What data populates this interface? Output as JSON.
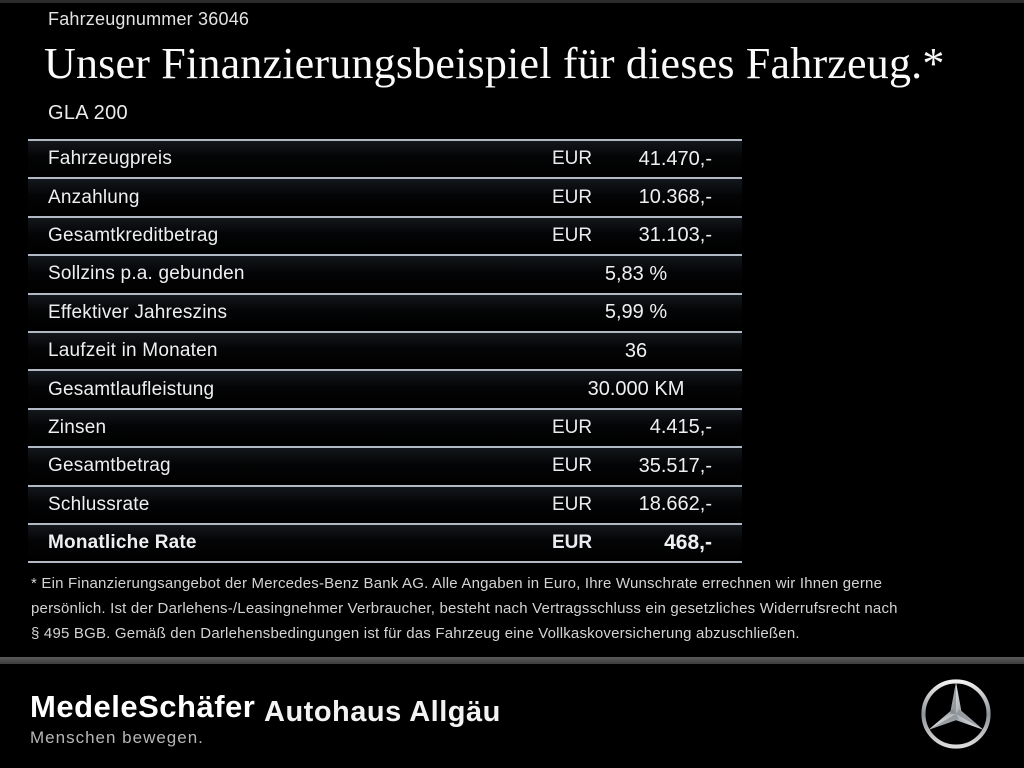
{
  "header": {
    "vehicle_number": "Fahrzeugnummer 36046",
    "title": "Unser Finanzierungsbeispiel für dieses Fahrzeug.*",
    "model": "GLA 200"
  },
  "table": {
    "rows": [
      {
        "label": "Fahrzeugpreis",
        "currency": "EUR",
        "value": "41.470,-",
        "centered": false,
        "bold": false
      },
      {
        "label": "Anzahlung",
        "currency": "EUR",
        "value": "10.368,-",
        "centered": false,
        "bold": false
      },
      {
        "label": "Gesamtkreditbetrag",
        "currency": "EUR",
        "value": "31.103,-",
        "centered": false,
        "bold": false
      },
      {
        "label": "Sollzins p.a. gebunden",
        "currency": "",
        "value": "5,83 %",
        "centered": true,
        "bold": false
      },
      {
        "label": "Effektiver Jahreszins",
        "currency": "",
        "value": "5,99 %",
        "centered": true,
        "bold": false
      },
      {
        "label": "Laufzeit in Monaten",
        "currency": "",
        "value": "36",
        "centered": true,
        "bold": false
      },
      {
        "label": "Gesamtlaufleistung",
        "currency": "",
        "value": "30.000 KM",
        "centered": true,
        "bold": false
      },
      {
        "label": "Zinsen",
        "currency": "EUR",
        "value": "4.415,-",
        "centered": false,
        "bold": false
      },
      {
        "label": "Gesamtbetrag",
        "currency": "EUR",
        "value": "35.517,-",
        "centered": false,
        "bold": false
      },
      {
        "label": "Schlussrate",
        "currency": "EUR",
        "value": "18.662,-",
        "centered": false,
        "bold": false
      },
      {
        "label": "Monatliche Rate",
        "currency": "EUR",
        "value": "468,-",
        "centered": false,
        "bold": true
      }
    ]
  },
  "footnote_lines": [
    "* Ein Finanzierungsangebot der Mercedes-Benz Bank AG. Alle Angaben in Euro, Ihre Wunschrate errechnen wir Ihnen gerne",
    "persönlich. Ist der Darlehens-/Leasingnehmer Verbraucher, besteht nach Vertragsschluss ein gesetzliches Widerrufsrecht nach",
    "§ 495 BGB. Gemäß den Darlehensbedingungen ist für das Fahrzeug eine Vollkaskoversicherung abzuschließen."
  ],
  "footer": {
    "dealer_primary": "MedeleSchäfer",
    "dealer_tagline": "Menschen bewegen.",
    "dealer_secondary": "Autohaus Allgäu",
    "brand_icon": "mercedes-star-icon"
  },
  "colors": {
    "background": "#000000",
    "table_line": "#b1bac4",
    "text_primary": "#f5f5f5",
    "footnote_text": "#d4d4d4",
    "footer_divider": "#4d4d4d"
  }
}
